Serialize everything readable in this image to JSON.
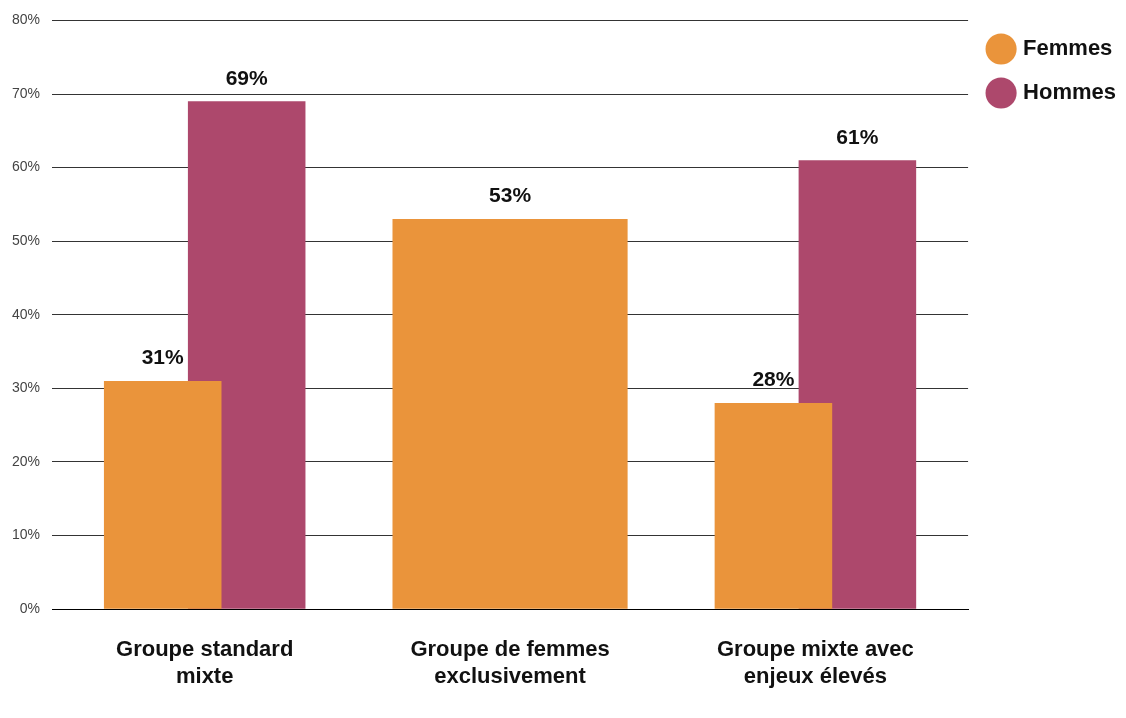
{
  "chart_data": {
    "type": "bar",
    "categories": [
      "Groupe standard mixte",
      "Groupe de femmes exclusivement",
      "Groupe mixte avec enjeux élevés"
    ],
    "series": [
      {
        "name": "Femmes",
        "color": "#ea943b",
        "values": [
          31,
          53,
          28
        ],
        "value_labels": [
          "31%",
          "53%",
          "28%"
        ]
      },
      {
        "name": "Hommes",
        "color": "#ad486c",
        "values": [
          69,
          null,
          61
        ],
        "value_labels": [
          "69%",
          null,
          "61%"
        ]
      }
    ],
    "ylim": [
      0,
      80
    ],
    "yticks": [
      {
        "value": 0,
        "label": "0%"
      },
      {
        "value": 10,
        "label": "10%"
      },
      {
        "value": 20,
        "label": "20%"
      },
      {
        "value": 30,
        "label": "30%"
      },
      {
        "value": 40,
        "label": "40%"
      },
      {
        "value": 50,
        "label": "50%"
      },
      {
        "value": 60,
        "label": "60%"
      },
      {
        "value": 70,
        "label": "70%"
      },
      {
        "value": 80,
        "label": "80%"
      }
    ],
    "grid": "y",
    "legend": "top right"
  }
}
